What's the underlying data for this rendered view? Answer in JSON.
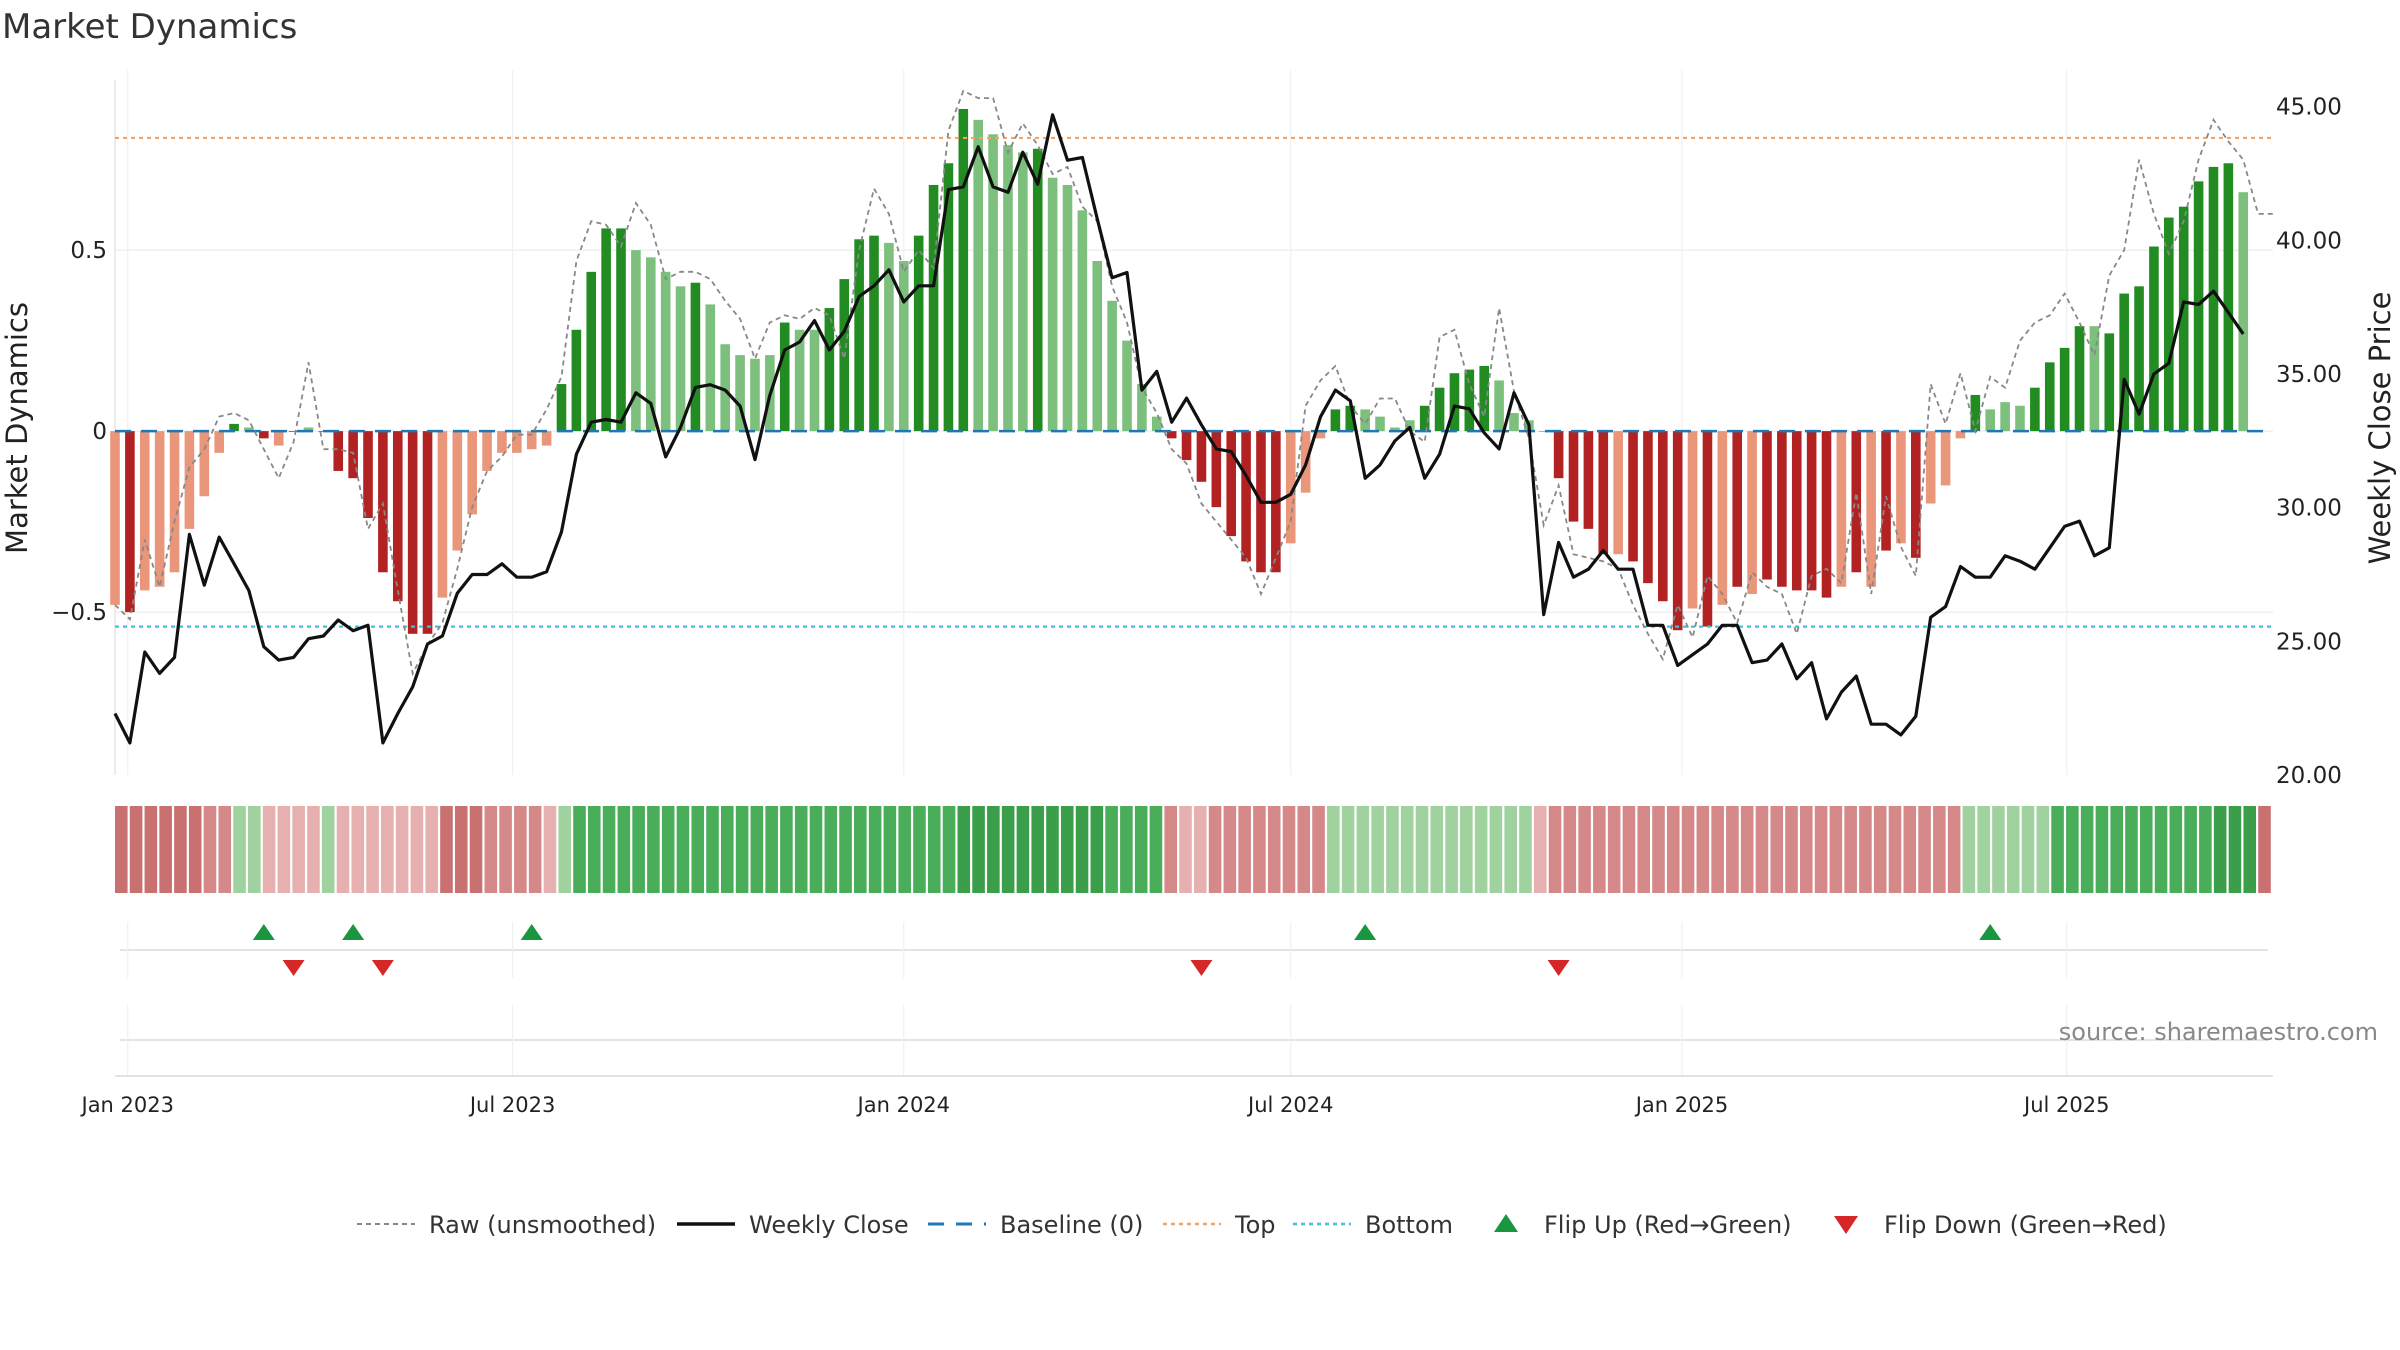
{
  "chart_data": {
    "type": "bar",
    "title": "Market Dynamics",
    "ylabel_left": "Market Dynamics",
    "ylabel_right": "Weekly Close Price",
    "ylim_left": [
      -0.95,
      0.97
    ],
    "ylim_right": [
      20.0,
      46.0
    ],
    "yticks_left": [
      {
        "value": 0.5,
        "label": "0.5"
      },
      {
        "value": 0,
        "label": "0"
      },
      {
        "value": -0.5,
        "label": "−0.5"
      }
    ],
    "yticks_right": [
      {
        "value": 45,
        "label": "45.00"
      },
      {
        "value": 40,
        "label": "40.00"
      },
      {
        "value": 35,
        "label": "35.00"
      },
      {
        "value": 30,
        "label": "30.00"
      },
      {
        "value": 25,
        "label": "25.00"
      },
      {
        "value": 20,
        "label": "20.00"
      }
    ],
    "x_range": [
      "2022-12-26",
      "2025-10-06"
    ],
    "xticks": [
      {
        "date": "2023-01-01",
        "label": "Jan 2023"
      },
      {
        "date": "2023-07-01",
        "label": "Jul 2023"
      },
      {
        "date": "2024-01-01",
        "label": "Jan 2024"
      },
      {
        "date": "2024-07-01",
        "label": "Jul 2024"
      },
      {
        "date": "2025-01-01",
        "label": "Jan 2025"
      },
      {
        "date": "2025-07-01",
        "label": "Jul 2025"
      }
    ],
    "start_date": "2022-12-26",
    "week_step_days": 7,
    "top_line": 0.81,
    "bottom_line": -0.54,
    "baseline": 0,
    "dynamics": [
      -0.48,
      -0.5,
      -0.44,
      -0.43,
      -0.39,
      -0.27,
      -0.18,
      -0.06,
      0.02,
      0.01,
      -0.02,
      -0.04,
      0.0,
      0.01,
      0.0,
      -0.11,
      -0.13,
      -0.24,
      -0.39,
      -0.47,
      -0.56,
      -0.56,
      -0.46,
      -0.33,
      -0.23,
      -0.11,
      -0.06,
      -0.06,
      -0.05,
      -0.04,
      0.13,
      0.28,
      0.44,
      0.56,
      0.56,
      0.5,
      0.48,
      0.44,
      0.4,
      0.41,
      0.35,
      0.24,
      0.21,
      0.2,
      0.21,
      0.3,
      0.28,
      0.28,
      0.34,
      0.42,
      0.53,
      0.54,
      0.52,
      0.47,
      0.54,
      0.68,
      0.74,
      0.89,
      0.86,
      0.82,
      0.79,
      0.77,
      0.78,
      0.7,
      0.68,
      0.61,
      0.47,
      0.36,
      0.25,
      0.13,
      0.04,
      -0.02,
      -0.08,
      -0.14,
      -0.21,
      -0.29,
      -0.36,
      -0.39,
      -0.39,
      -0.31,
      -0.17,
      -0.02,
      0.06,
      0.07,
      0.06,
      0.04,
      0.01,
      0.03,
      0.07,
      0.12,
      0.16,
      0.17,
      0.18,
      0.14,
      0.05,
      0.03,
      0.0,
      -0.13,
      -0.25,
      -0.27,
      -0.34,
      -0.34,
      -0.36,
      -0.42,
      -0.47,
      -0.55,
      -0.49,
      -0.54,
      -0.48,
      -0.43,
      -0.45,
      -0.41,
      -0.43,
      -0.44,
      -0.44,
      -0.46,
      -0.43,
      -0.39,
      -0.43,
      -0.33,
      -0.31,
      -0.35,
      -0.2,
      -0.15,
      -0.02,
      0.1,
      0.06,
      0.08,
      0.07,
      0.12,
      0.19,
      0.23,
      0.29,
      0.29,
      0.27,
      0.38,
      0.4,
      0.51,
      0.59,
      0.62,
      0.69,
      0.73,
      0.74,
      0.66
    ],
    "dynamics_shade": [
      0,
      1,
      0,
      0,
      0,
      0,
      0,
      0,
      1,
      0,
      1,
      0,
      1,
      0,
      1,
      1,
      1,
      1,
      1,
      1,
      1,
      1,
      0,
      0,
      0,
      0,
      0,
      0,
      0,
      0,
      1,
      1,
      1,
      1,
      1,
      0,
      0,
      0,
      0,
      1,
      0,
      0,
      0,
      0,
      0,
      1,
      0,
      0,
      1,
      1,
      1,
      1,
      0,
      0,
      1,
      1,
      1,
      1,
      0,
      0,
      0,
      0,
      1,
      0,
      0,
      0,
      0,
      0,
      0,
      0,
      0,
      1,
      1,
      1,
      1,
      1,
      1,
      1,
      1,
      0,
      0,
      0,
      1,
      1,
      0,
      0,
      0,
      0,
      1,
      1,
      1,
      1,
      1,
      0,
      0,
      0,
      0,
      1,
      1,
      1,
      1,
      0,
      1,
      1,
      1,
      1,
      0,
      1,
      0,
      1,
      0,
      1,
      1,
      1,
      1,
      1,
      0,
      1,
      0,
      1,
      0,
      1,
      0,
      0,
      0,
      1,
      0,
      0,
      0,
      1,
      1,
      1,
      1,
      0,
      1,
      1,
      1,
      1,
      1,
      1,
      1,
      1,
      1,
      0
    ],
    "raw_points": [
      [
        0,
        -0.48
      ],
      [
        1,
        -0.52
      ],
      [
        2,
        -0.3
      ],
      [
        3,
        -0.43
      ],
      [
        4,
        -0.25
      ],
      [
        5,
        -0.1
      ],
      [
        6,
        -0.05
      ],
      [
        7,
        0.04
      ],
      [
        8,
        0.05
      ],
      [
        9,
        0.03
      ],
      [
        10,
        -0.05
      ],
      [
        11,
        -0.13
      ],
      [
        12,
        -0.03
      ],
      [
        13,
        0.19
      ],
      [
        14,
        -0.05
      ],
      [
        15,
        -0.05
      ],
      [
        16,
        -0.06
      ],
      [
        17,
        -0.27
      ],
      [
        18,
        -0.2
      ],
      [
        19,
        -0.44
      ],
      [
        20,
        -0.67
      ],
      [
        21,
        -0.59
      ],
      [
        22,
        -0.53
      ],
      [
        23,
        -0.38
      ],
      [
        24,
        -0.21
      ],
      [
        25,
        -0.11
      ],
      [
        26,
        -0.07
      ],
      [
        27,
        -0.01
      ],
      [
        28,
        -0.01
      ],
      [
        29,
        0.06
      ],
      [
        30,
        0.15
      ],
      [
        31,
        0.47
      ],
      [
        32,
        0.58
      ],
      [
        33,
        0.57
      ],
      [
        34,
        0.51
      ],
      [
        35,
        0.63
      ],
      [
        36,
        0.57
      ],
      [
        37,
        0.42
      ],
      [
        38,
        0.44
      ],
      [
        39,
        0.44
      ],
      [
        40,
        0.42
      ],
      [
        41,
        0.36
      ],
      [
        42,
        0.31
      ],
      [
        43,
        0.2
      ],
      [
        44,
        0.3
      ],
      [
        45,
        0.32
      ],
      [
        46,
        0.31
      ],
      [
        47,
        0.34
      ],
      [
        48,
        0.32
      ],
      [
        49,
        0.2
      ],
      [
        50,
        0.5
      ],
      [
        51,
        0.67
      ],
      [
        52,
        0.6
      ],
      [
        53,
        0.44
      ],
      [
        54,
        0.5
      ],
      [
        55,
        0.45
      ],
      [
        56,
        0.83
      ],
      [
        57,
        0.94
      ],
      [
        58,
        0.92
      ],
      [
        59,
        0.92
      ],
      [
        60,
        0.77
      ],
      [
        61,
        0.85
      ],
      [
        62,
        0.79
      ],
      [
        63,
        0.71
      ],
      [
        64,
        0.73
      ],
      [
        65,
        0.62
      ],
      [
        66,
        0.58
      ],
      [
        67,
        0.4
      ],
      [
        68,
        0.3
      ],
      [
        69,
        0.12
      ],
      [
        70,
        0.05
      ],
      [
        71,
        -0.05
      ],
      [
        72,
        -0.09
      ],
      [
        73,
        -0.2
      ],
      [
        74,
        -0.25
      ],
      [
        75,
        -0.3
      ],
      [
        76,
        -0.35
      ],
      [
        77,
        -0.45
      ],
      [
        78,
        -0.35
      ],
      [
        79,
        -0.25
      ],
      [
        80,
        0.07
      ],
      [
        81,
        0.14
      ],
      [
        82,
        0.18
      ],
      [
        83,
        0.07
      ],
      [
        84,
        0.02
      ],
      [
        85,
        0.09
      ],
      [
        86,
        0.09
      ],
      [
        87,
        0.0
      ],
      [
        88,
        -0.03
      ],
      [
        89,
        0.26
      ],
      [
        90,
        0.28
      ],
      [
        91,
        0.13
      ],
      [
        92,
        0.04
      ],
      [
        93,
        0.34
      ],
      [
        94,
        0.11
      ],
      [
        95,
        -0.02
      ],
      [
        96,
        -0.26
      ],
      [
        97,
        -0.15
      ],
      [
        98,
        -0.34
      ],
      [
        99,
        -0.35
      ],
      [
        100,
        -0.36
      ],
      [
        101,
        -0.38
      ],
      [
        102,
        -0.48
      ],
      [
        103,
        -0.56
      ],
      [
        104,
        -0.63
      ],
      [
        105,
        -0.48
      ],
      [
        106,
        -0.57
      ],
      [
        107,
        -0.4
      ],
      [
        108,
        -0.45
      ],
      [
        109,
        -0.53
      ],
      [
        110,
        -0.39
      ],
      [
        111,
        -0.43
      ],
      [
        112,
        -0.45
      ],
      [
        113,
        -0.56
      ],
      [
        114,
        -0.4
      ],
      [
        115,
        -0.38
      ],
      [
        116,
        -0.42
      ],
      [
        117,
        -0.17
      ],
      [
        118,
        -0.45
      ],
      [
        119,
        -0.18
      ],
      [
        120,
        -0.32
      ],
      [
        121,
        -0.4
      ],
      [
        122,
        0.13
      ],
      [
        123,
        0.02
      ],
      [
        124,
        0.16
      ],
      [
        125,
        0.0
      ],
      [
        126,
        0.15
      ],
      [
        127,
        0.12
      ],
      [
        128,
        0.25
      ],
      [
        129,
        0.3
      ],
      [
        130,
        0.32
      ],
      [
        131,
        0.38
      ],
      [
        132,
        0.3
      ],
      [
        133,
        0.21
      ],
      [
        134,
        0.43
      ],
      [
        135,
        0.5
      ],
      [
        136,
        0.75
      ],
      [
        137,
        0.6
      ],
      [
        138,
        0.49
      ],
      [
        139,
        0.58
      ],
      [
        140,
        0.75
      ],
      [
        141,
        0.86
      ],
      [
        142,
        0.8
      ],
      [
        143,
        0.75
      ],
      [
        144,
        0.6
      ],
      [
        145,
        0.6
      ]
    ],
    "close_prices": [
      22.3,
      21.2,
      24.6,
      23.8,
      24.4,
      29.0,
      27.1,
      28.9,
      27.9,
      26.9,
      24.8,
      24.3,
      24.4,
      25.1,
      25.2,
      25.8,
      25.4,
      25.6,
      21.2,
      22.3,
      23.3,
      24.9,
      25.2,
      26.8,
      27.5,
      27.5,
      27.9,
      27.4,
      27.4,
      27.6,
      29.1,
      32.0,
      33.2,
      33.3,
      33.2,
      34.3,
      33.9,
      31.9,
      33.0,
      34.5,
      34.6,
      34.4,
      33.8,
      31.8,
      34.2,
      35.9,
      36.2,
      37.0,
      35.9,
      36.6,
      37.9,
      38.3,
      38.9,
      37.7,
      38.3,
      38.3,
      41.9,
      42.0,
      43.5,
      42.0,
      41.8,
      43.3,
      42.1,
      44.7,
      43.0,
      43.1,
      40.8,
      38.6,
      38.8,
      34.4,
      35.1,
      33.2,
      34.1,
      33.1,
      32.2,
      32.1,
      31.2,
      30.2,
      30.2,
      30.5,
      31.6,
      33.4,
      34.4,
      34.0,
      31.1,
      31.6,
      32.5,
      33.0,
      31.1,
      32.0,
      33.8,
      33.7,
      32.8,
      32.2,
      34.3,
      33.1,
      26.0,
      28.7,
      27.4,
      27.7,
      28.4,
      27.7,
      27.7,
      25.6,
      25.6,
      24.1,
      24.5,
      24.9,
      25.6,
      25.6,
      24.2,
      24.3,
      24.9,
      23.6,
      24.2,
      22.1,
      23.1,
      23.7,
      21.9,
      21.9,
      21.5,
      22.2,
      25.9,
      26.3,
      27.8,
      27.4,
      27.4,
      28.2,
      28.0,
      27.7,
      28.5,
      29.3,
      29.5,
      28.2,
      28.5,
      34.8,
      33.5,
      35.0,
      35.4,
      37.7,
      37.6,
      38.1,
      37.3,
      36.5
    ],
    "regime_strip": [
      3,
      3,
      3,
      3,
      3,
      3,
      2,
      2,
      1,
      1,
      1,
      1,
      1,
      1,
      1,
      1,
      1,
      1,
      1,
      1,
      1,
      1,
      3,
      3,
      3,
      2,
      2,
      2,
      2,
      1,
      1,
      2,
      2,
      2,
      2,
      2,
      2,
      2,
      2,
      2,
      2,
      2,
      2,
      2,
      2,
      2,
      2,
      2,
      2,
      2,
      2,
      2,
      2,
      2,
      2,
      2,
      2,
      3,
      3,
      3,
      3,
      3,
      3,
      3,
      3,
      3,
      3,
      2,
      2,
      2,
      2,
      2,
      1,
      1,
      2,
      2,
      2,
      2,
      2,
      2,
      2,
      2,
      1,
      1,
      1,
      1,
      1,
      1,
      1,
      1,
      1,
      1,
      1,
      1,
      1,
      1,
      1,
      2,
      2,
      2,
      2,
      2,
      2,
      2,
      2,
      2,
      2,
      2,
      2,
      2,
      2,
      2,
      2,
      2,
      2,
      2,
      2,
      2,
      2,
      2,
      2,
      2,
      2,
      2,
      2,
      1,
      1,
      1,
      1,
      1,
      1,
      2,
      2,
      2,
      2,
      2,
      2,
      2,
      2,
      2,
      2,
      2,
      3,
      3,
      3,
      3
    ],
    "regime_strip_sign": [
      -1,
      -1,
      -1,
      -1,
      -1,
      -1,
      -1,
      -1,
      1,
      1,
      -1,
      -1,
      -1,
      -1,
      1,
      -1,
      -1,
      -1,
      -1,
      -1,
      -1,
      -1,
      -1,
      -1,
      -1,
      -1,
      -1,
      -1,
      -1,
      -1,
      1,
      1,
      1,
      1,
      1,
      1,
      1,
      1,
      1,
      1,
      1,
      1,
      1,
      1,
      1,
      1,
      1,
      1,
      1,
      1,
      1,
      1,
      1,
      1,
      1,
      1,
      1,
      1,
      1,
      1,
      1,
      1,
      1,
      1,
      1,
      1,
      1,
      1,
      1,
      1,
      1,
      -1,
      -1,
      -1,
      -1,
      -1,
      -1,
      -1,
      -1,
      -1,
      -1,
      -1,
      1,
      1,
      1,
      1,
      1,
      1,
      1,
      1,
      1,
      1,
      1,
      1,
      1,
      1,
      -1,
      -1,
      -1,
      -1,
      -1,
      -1,
      -1,
      -1,
      -1,
      -1,
      -1,
      -1,
      -1,
      -1,
      -1,
      -1,
      -1,
      -1,
      -1,
      -1,
      -1,
      -1,
      -1,
      -1,
      -1,
      -1,
      -1,
      -1,
      -1,
      1,
      1,
      1,
      1,
      1,
      1,
      1,
      1,
      1,
      1,
      1,
      1,
      1,
      1,
      1,
      1,
      1,
      1,
      1,
      1
    ],
    "flip_up": [
      "2023-03-06",
      "2023-04-17",
      "2023-07-10",
      "2024-08-05",
      "2025-05-26"
    ],
    "flip_down": [
      "2023-03-20",
      "2023-05-01",
      "2024-05-20",
      "2024-11-04"
    ],
    "source": "source: sharemaestro.com",
    "legend": [
      {
        "label": "Raw (unsmoothed)",
        "style": "raw"
      },
      {
        "label": "Weekly Close",
        "style": "close"
      },
      {
        "label": "Baseline (0)",
        "style": "baseline"
      },
      {
        "label": "Top",
        "style": "top"
      },
      {
        "label": "Bottom",
        "style": "bottom"
      },
      {
        "label": "Flip Up (Red→Green)",
        "style": "flipup"
      },
      {
        "label": "Flip Down (Green→Red)",
        "style": "flipdown"
      }
    ],
    "colors": {
      "pos_dark": "#228b22",
      "pos_light": "#7dbf7d",
      "neg_dark": "#b22222",
      "neg_light": "#e9967a",
      "close": "#111111",
      "raw": "#888888",
      "baseline": "#1f77b4",
      "top": "#f4a460",
      "bottom": "#40c0e0",
      "flip_up": "#1a9641",
      "flip_down": "#d62728",
      "strip_pos": [
        "#d4ecd4",
        "#9fd29f",
        "#4aad5a",
        "#3a9e4a"
      ],
      "strip_neg": [
        "#f3d9d9",
        "#e6b0b0",
        "#d48888",
        "#c97070"
      ]
    }
  }
}
